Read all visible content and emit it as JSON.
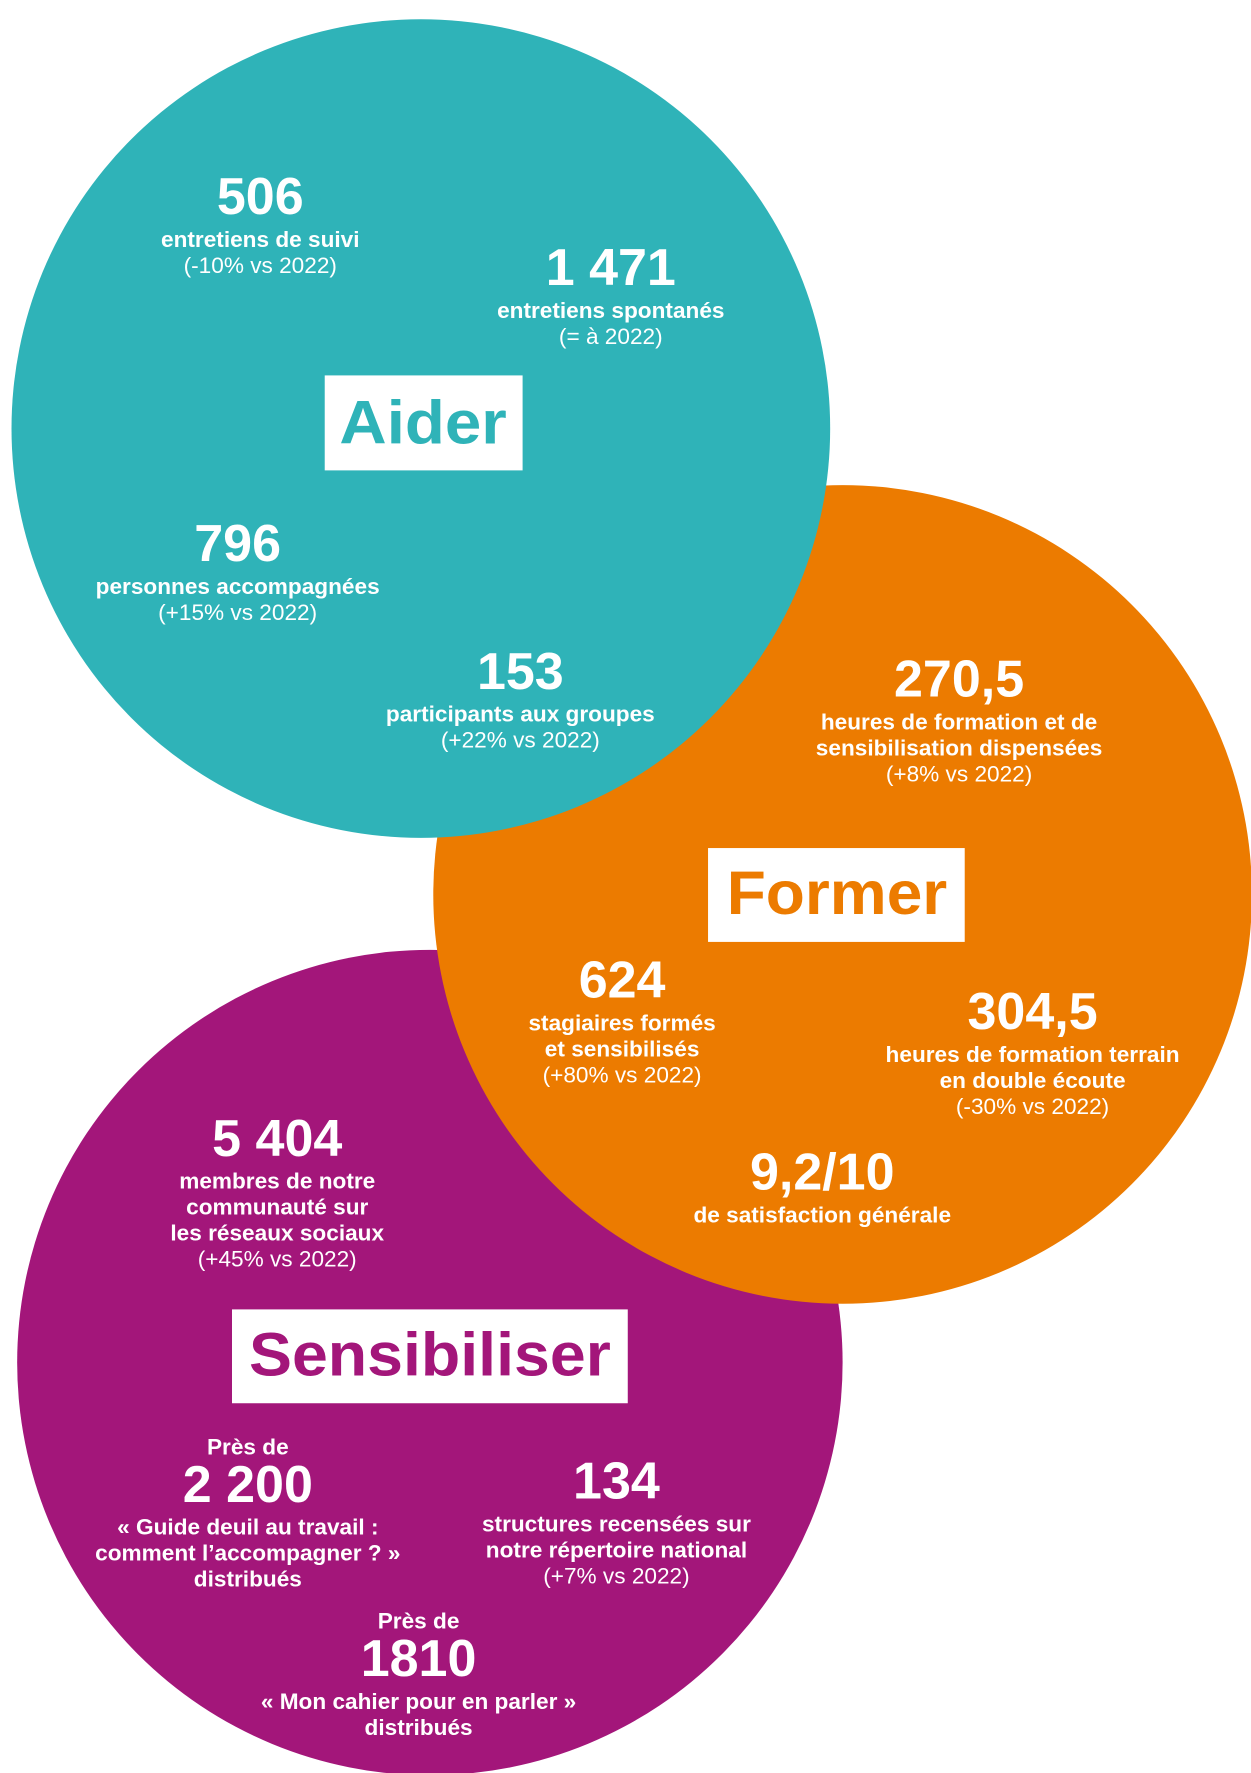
{
  "sections": [
    {
      "label": "Aider",
      "color": "#2fb3b8",
      "stats": [
        {
          "value": "506",
          "desc": [
            "entretiens de suivi"
          ],
          "note": "(-10% vs 2022)"
        },
        {
          "value": "1 471",
          "desc": [
            "entretiens spontanés"
          ],
          "note": "(= à 2022)"
        },
        {
          "value": "796",
          "desc": [
            "personnes accompagnées"
          ],
          "note": "(+15% vs 2022)"
        },
        {
          "value": "153",
          "desc": [
            "participants aux groupes"
          ],
          "note": "(+22% vs 2022)"
        }
      ]
    },
    {
      "label": "Former",
      "color": "#ec7b00",
      "stats": [
        {
          "value": "270,5",
          "desc": [
            "heures de formation et de",
            "sensibilisation dispensées"
          ],
          "note": "(+8% vs 2022)"
        },
        {
          "value": "624",
          "desc": [
            "stagiaires formés",
            "et sensibilisés"
          ],
          "note": "(+80% vs 2022)"
        },
        {
          "value": "304,5",
          "desc": [
            "heures de formation terrain",
            "en double écoute"
          ],
          "note": "(-30% vs 2022)"
        },
        {
          "value": "9,2/10",
          "desc": [
            "de satisfaction générale"
          ]
        }
      ]
    },
    {
      "label": "Sensibiliser",
      "color": "#a3167a",
      "stats": [
        {
          "value": "5 404",
          "desc": [
            "membres de notre",
            "communauté sur",
            "les réseaux sociaux"
          ],
          "note": "(+45% vs 2022)"
        },
        {
          "prefix": "Près de",
          "value": "2 200",
          "desc": [
            "« Guide deuil au travail :",
            "comment l’accompagner ? »",
            "distribués"
          ]
        },
        {
          "value": "134",
          "desc": [
            "structures recensées sur",
            "notre répertoire national"
          ],
          "note": "(+7% vs 2022)"
        },
        {
          "prefix": "Près de",
          "value": "1810",
          "desc": [
            "« Mon cahier pour en parler »",
            "distribués"
          ]
        }
      ]
    }
  ]
}
